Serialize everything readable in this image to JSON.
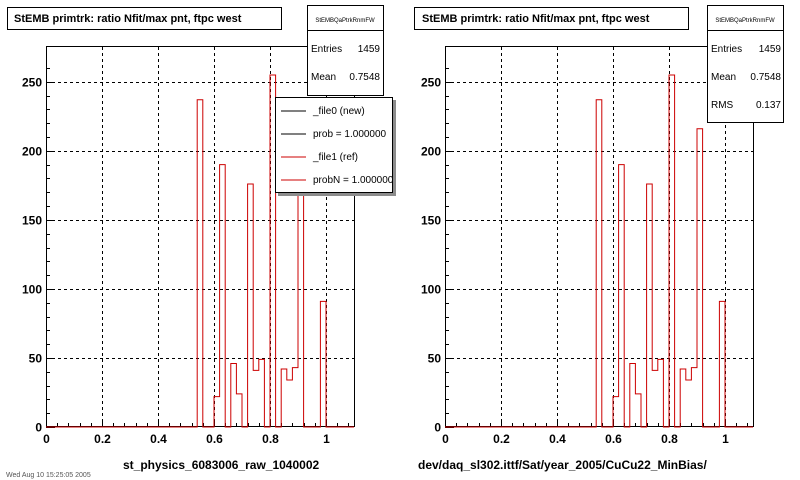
{
  "colors": {
    "new": "#000000",
    "ref": "#cc0000",
    "background": "#ffffff",
    "grid": "#000000"
  },
  "panels": [
    {
      "title": "StEMB primtrk: ratio Nfit/max pnt, ftpc west",
      "stats": {
        "name": "StEMBQaPtrkRnmFW",
        "rows": [
          {
            "label": "Entries",
            "value": "1459"
          },
          {
            "label": "Mean",
            "value": "0.7548"
          }
        ]
      },
      "legend": [
        {
          "label": "_file0 (new)",
          "color_key": "new"
        },
        {
          "label": "prob = 1.000000",
          "color_key": "new"
        },
        {
          "label": "_file1 (ref)",
          "color_key": "ref"
        },
        {
          "label": "probN = 1.000000",
          "color_key": "ref"
        }
      ],
      "xlabel": "st_physics_6083006_raw_1040002",
      "footer": "Wed Aug 10 15:25:05 2005"
    },
    {
      "title": "StEMB primtrk: ratio Nfit/max pnt, ftpc west",
      "stats": {
        "name": "StEMBQaPtrkRnmFW",
        "rows": [
          {
            "label": "Entries",
            "value": "1459"
          },
          {
            "label": "Mean",
            "value": "0.7548"
          },
          {
            "label": "RMS",
            "value": "0.137"
          }
        ]
      },
      "legend": [],
      "xlabel": "dev/daq_sl302.ittf/Sat/year_2005/CuCu22_MinBias/",
      "footer": ""
    }
  ],
  "chart_data": {
    "type": "bar",
    "style": "step-histogram",
    "bin_width": 0.02,
    "xlim": [
      0,
      1.1
    ],
    "ylim": [
      0,
      268
    ],
    "xticks": [
      "0",
      "0.2",
      "0.4",
      "0.6",
      "0.8",
      "1"
    ],
    "yticks": [
      "0",
      "50",
      "100",
      "150",
      "200",
      "250"
    ],
    "grid": true,
    "legend_position": "top-right",
    "series": [
      {
        "color_key": "ref",
        "bins": [
          {
            "x0": 0.54,
            "y": 237
          },
          {
            "x0": 0.56,
            "y": 0
          },
          {
            "x0": 0.58,
            "y": 0
          },
          {
            "x0": 0.6,
            "y": 22
          },
          {
            "x0": 0.62,
            "y": 190
          },
          {
            "x0": 0.64,
            "y": 0
          },
          {
            "x0": 0.66,
            "y": 46
          },
          {
            "x0": 0.68,
            "y": 24
          },
          {
            "x0": 0.7,
            "y": 0
          },
          {
            "x0": 0.72,
            "y": 176
          },
          {
            "x0": 0.74,
            "y": 41
          },
          {
            "x0": 0.76,
            "y": 49
          },
          {
            "x0": 0.78,
            "y": 0
          },
          {
            "x0": 0.8,
            "y": 255
          },
          {
            "x0": 0.82,
            "y": 0
          },
          {
            "x0": 0.84,
            "y": 42
          },
          {
            "x0": 0.86,
            "y": 34
          },
          {
            "x0": 0.88,
            "y": 43
          },
          {
            "x0": 0.9,
            "y": 216
          },
          {
            "x0": 0.92,
            "y": 0
          },
          {
            "x0": 0.94,
            "y": 0
          },
          {
            "x0": 0.96,
            "y": 0
          },
          {
            "x0": 0.98,
            "y": 91
          },
          {
            "x0": 1.0,
            "y": 0
          }
        ]
      }
    ]
  }
}
